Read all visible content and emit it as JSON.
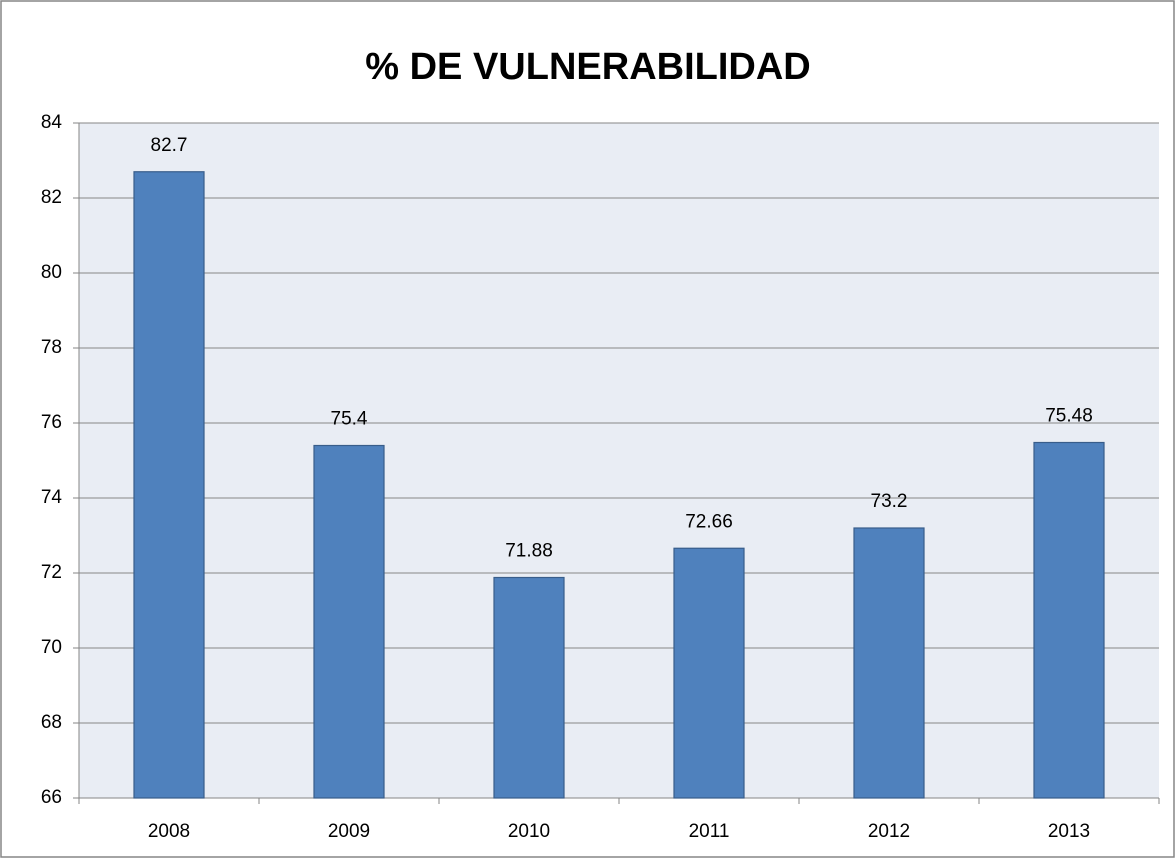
{
  "chart_data": {
    "type": "bar",
    "title": "% DE VULNERABILIDAD",
    "categories": [
      "2008",
      "2009",
      "2010",
      "2011",
      "2012",
      "2013"
    ],
    "values": [
      82.7,
      75.4,
      71.88,
      72.66,
      73.2,
      75.48
    ],
    "color": "#4f81bd",
    "ylim": [
      66,
      84
    ],
    "yticks": [
      66,
      68,
      70,
      72,
      74,
      76,
      78,
      80,
      82,
      84
    ],
    "grid": true
  }
}
